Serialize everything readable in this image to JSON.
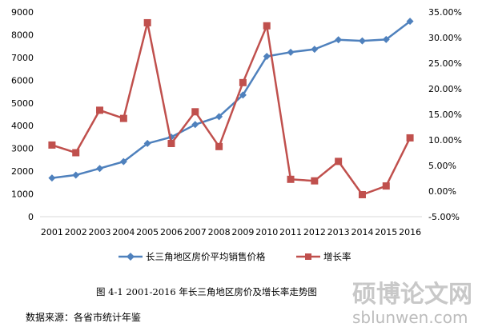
{
  "chart_data": {
    "type": "line",
    "categories": [
      "2001",
      "2002",
      "2003",
      "2004",
      "2005",
      "2006",
      "2007",
      "2008",
      "2009",
      "2010",
      "2011",
      "2012",
      "2013",
      "2014",
      "2015",
      "2016"
    ],
    "y_left_ticks": [
      "0",
      "1000",
      "2000",
      "3000",
      "4000",
      "5000",
      "6000",
      "7000",
      "8000",
      "9000"
    ],
    "y_right_ticks": [
      "-5.00%",
      "0.00%",
      "5.00%",
      "10.00%",
      "15.00%",
      "20.00%",
      "25.00%",
      "30.00%",
      "35.00%"
    ],
    "ylim_left": [
      0,
      9000
    ],
    "ylim_right": [
      -5,
      35
    ],
    "series": [
      {
        "name": "长三角地区房价平均销售价格",
        "axis": "left",
        "color": "#4f81bd",
        "marker": "diamond",
        "values": [
          1700,
          1830,
          2120,
          2420,
          3220,
          3500,
          4050,
          4400,
          5350,
          7050,
          7230,
          7360,
          7780,
          7730,
          7790,
          8590
        ]
      },
      {
        "name": "增长率",
        "axis": "right",
        "color": "#c0504d",
        "marker": "square",
        "values": [
          9.0,
          7.5,
          15.8,
          14.2,
          32.9,
          9.3,
          15.5,
          8.7,
          21.2,
          32.3,
          2.3,
          2.0,
          5.8,
          -0.7,
          1.0,
          10.4
        ]
      }
    ],
    "grid": false,
    "legend_position": "bottom"
  },
  "caption": "图 4-1    2001-2016 年长三角地区房价及增长率走势图",
  "source_note": "数据来源：各省市统计年鉴",
  "watermark": {
    "chinese": "硕博论文网",
    "url": "sblunwen.com"
  }
}
